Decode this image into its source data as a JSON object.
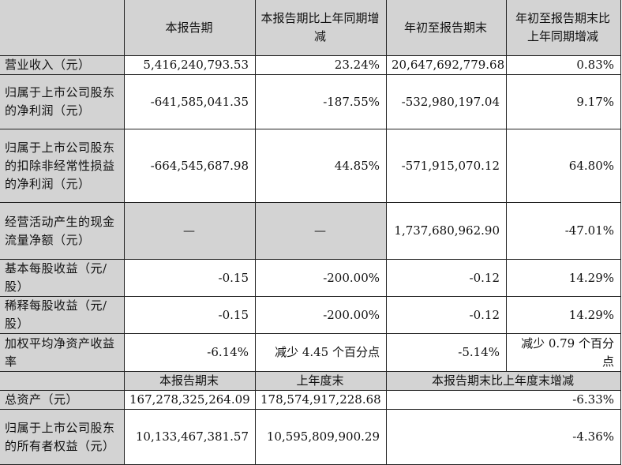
{
  "header": [
    "",
    "本报告期",
    "本报告期比上年同期增减",
    "年初至报告期末",
    "年初至报告期末比上年同期增减"
  ],
  "rows": [
    {
      "label": "营业收入（元）",
      "v": [
        "5,416,240,793.53",
        "23.24%",
        "20,647,692,779.68",
        "0.83%"
      ]
    },
    {
      "label": "归属于上市公司股东的净利润（元）",
      "v": [
        "-641,585,041.35",
        "-187.55%",
        "-532,980,197.04",
        "9.17%"
      ]
    },
    {
      "label": "归属于上市公司股东的扣除非经常性损益的净利润（元）",
      "v": [
        "-664,545,687.98",
        "44.85%",
        "-571,915,070.12",
        "64.80%"
      ]
    },
    {
      "label": "经营活动产生的现金流量净额（元）",
      "v": [
        "—",
        "—",
        "1,737,680,962.90",
        "-47.01%"
      ]
    },
    {
      "label": "基本每股收益（元/股）",
      "v": [
        "-0.15",
        "-200.00%",
        "-0.12",
        "14.29%"
      ]
    },
    {
      "label": "稀释每股收益（元/股）",
      "v": [
        "-0.15",
        "-200.00%",
        "-0.12",
        "14.29%"
      ]
    },
    {
      "label": "加权平均净资产收益率",
      "v": [
        "-6.14%",
        "减少 4.45 个百分点",
        "-5.14%",
        "减少 0.79 个百分点"
      ]
    }
  ],
  "header2": [
    "",
    "本报告期末",
    "上年度末",
    "本报告期末比上年度末增减"
  ],
  "rows2": [
    {
      "label": "总资产（元）",
      "v": [
        "167,278,325,264.09",
        "178,574,917,228.68",
        "-6.33%"
      ]
    },
    {
      "label": "归属于上市公司股东的所有者权益（元）",
      "v": [
        "10,133,467,381.57",
        "10,595,809,900.29",
        "-4.36%"
      ]
    }
  ],
  "colors": {
    "shade": "#d3d3d3",
    "border": "#222222"
  }
}
